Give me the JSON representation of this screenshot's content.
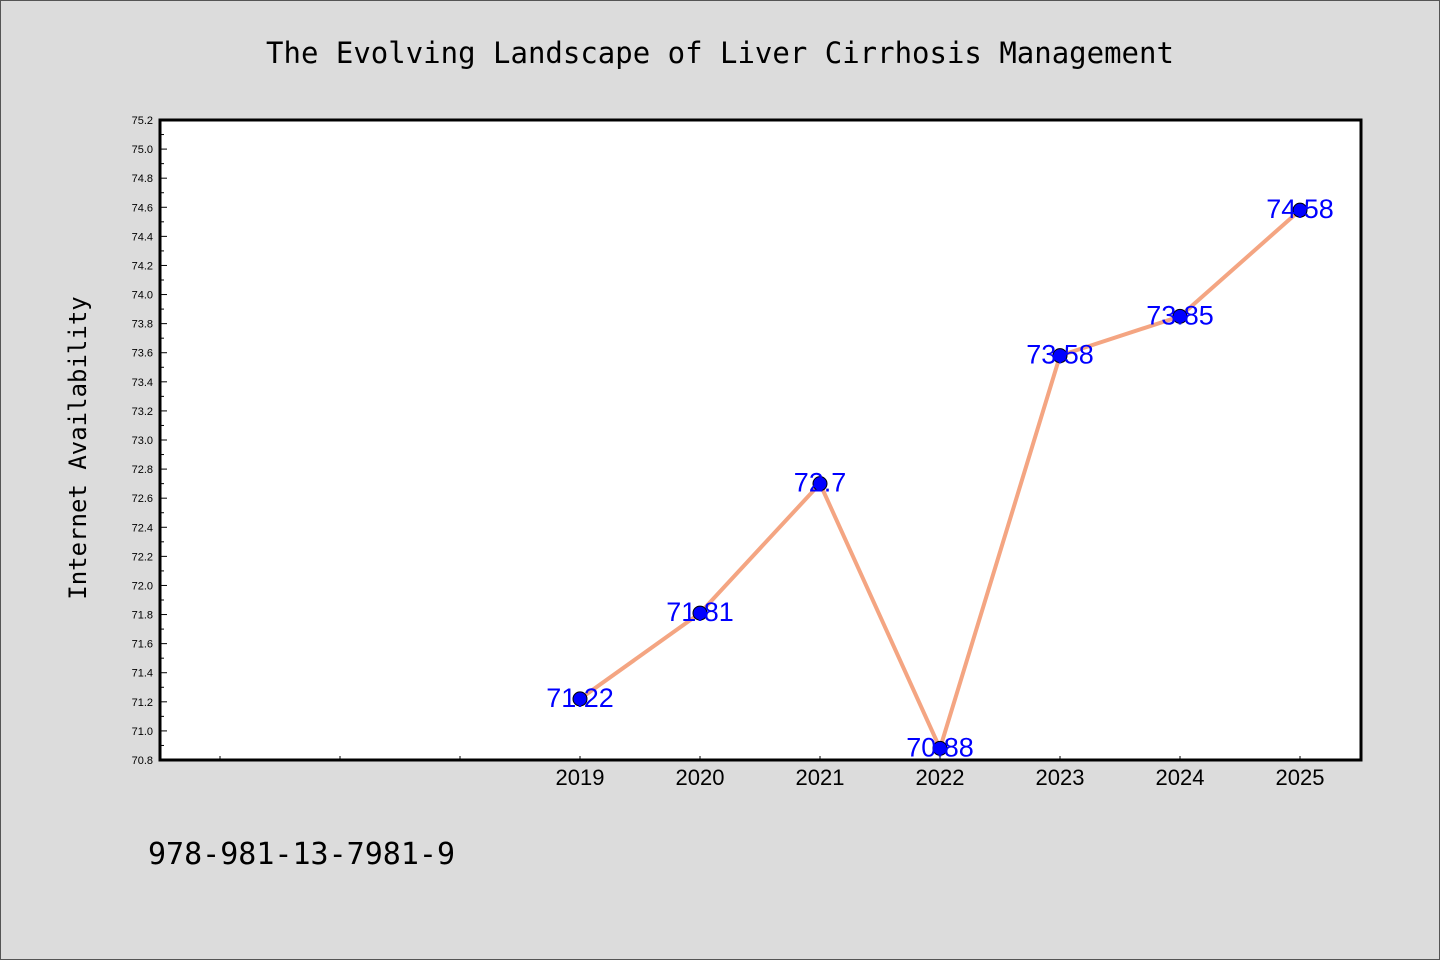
{
  "chart_data": {
    "type": "line",
    "title": "The Evolving Landscape of Liver Cirrhosis Management",
    "xlabel": "",
    "ylabel": "Internet Availability",
    "categories": [
      "2019",
      "2020",
      "2021",
      "2022",
      "2023",
      "2024",
      "2025"
    ],
    "series": [
      {
        "values": [
          71.22,
          71.81,
          72.7,
          70.88,
          73.58,
          73.85,
          74.58
        ],
        "data_labels": [
          "71.22",
          "71.81",
          "72.7",
          "70.88",
          "73.58",
          "73.85",
          "74.58"
        ]
      }
    ],
    "ylim": [
      70.8,
      75.2
    ],
    "y_tick_step": 0.2,
    "x_slots_before_data": 3,
    "grid": false,
    "legend": "none",
    "colors": {
      "background": "#dcdcdc",
      "plot_background": "#ffffff",
      "line": "#f4a582",
      "marker": "#0000ff",
      "data_label": "#0000ff",
      "text": "#000000"
    }
  },
  "footer": {
    "isbn": "978-981-13-7981-9"
  }
}
